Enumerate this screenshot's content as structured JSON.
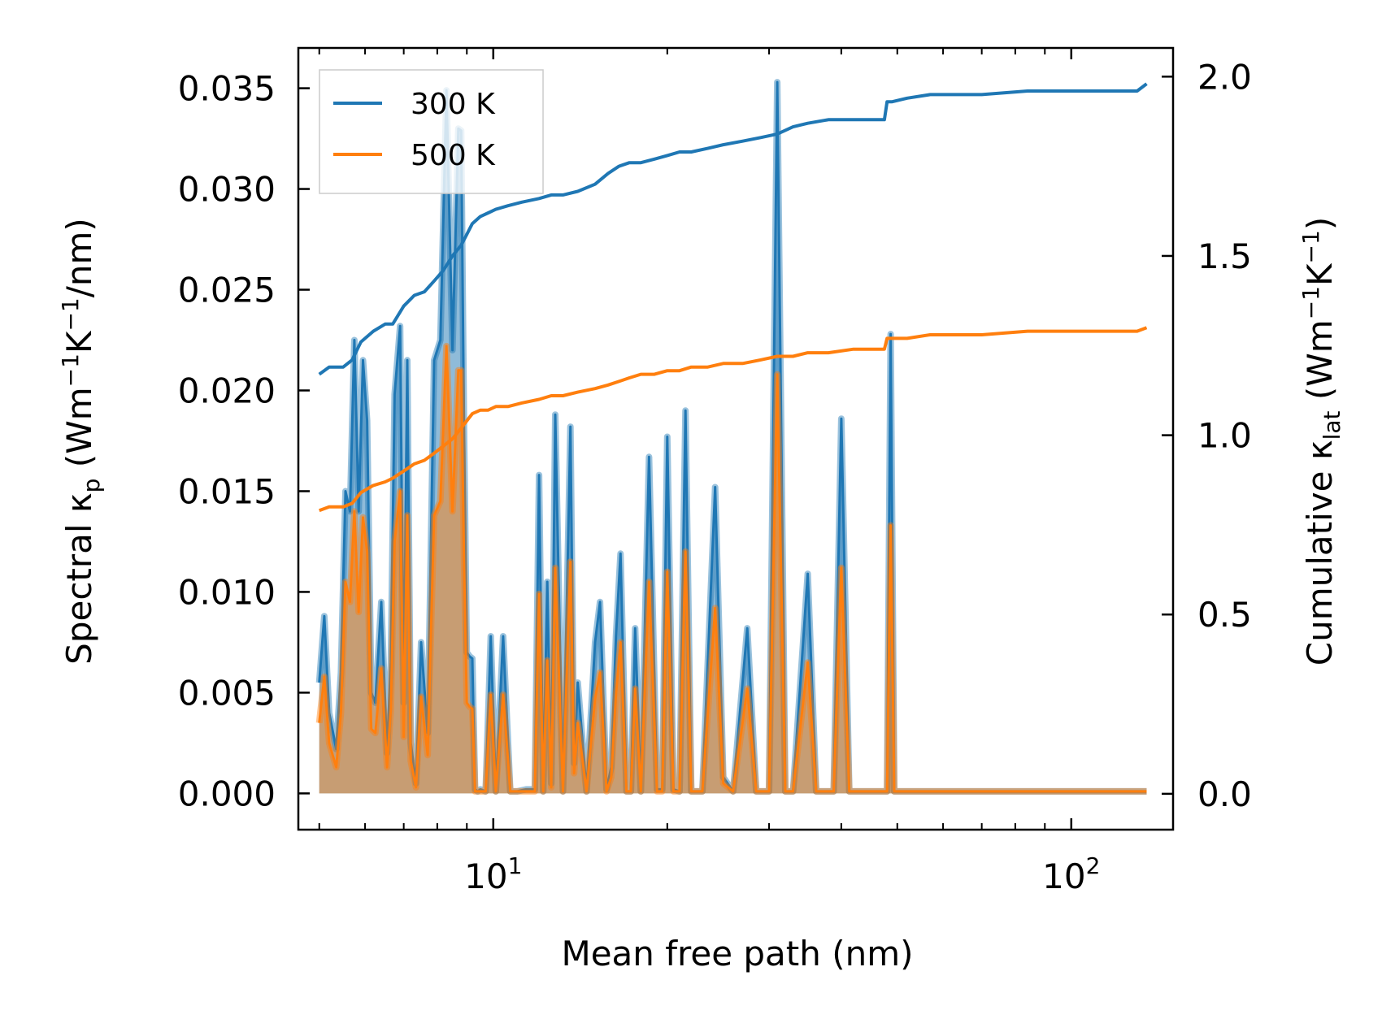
{
  "chart_data": {
    "type": "line",
    "x_scale": "log",
    "xlabel": "Mean free path (nm)",
    "ylabel_left": "Spectral κ_p (Wm⁻¹K⁻¹/nm)",
    "ylabel_right": "Cumulative κ_lat (Wm⁻¹K⁻¹)",
    "xlim": [
      4.6,
      150
    ],
    "ylim_left": [
      -0.0018,
      0.037
    ],
    "ylim_right": [
      -0.1,
      2.08
    ],
    "x_ticks": [
      {
        "value": 10,
        "base": "10",
        "exp": "1"
      },
      {
        "value": 100,
        "base": "10",
        "exp": "2"
      }
    ],
    "y_ticks_left": [
      {
        "value": 0.0,
        "label": "0.000"
      },
      {
        "value": 0.005,
        "label": "0.005"
      },
      {
        "value": 0.01,
        "label": "0.010"
      },
      {
        "value": 0.015,
        "label": "0.015"
      },
      {
        "value": 0.02,
        "label": "0.020"
      },
      {
        "value": 0.025,
        "label": "0.025"
      },
      {
        "value": 0.03,
        "label": "0.030"
      },
      {
        "value": 0.035,
        "label": "0.035"
      }
    ],
    "y_ticks_right": [
      {
        "value": 0.0,
        "label": "0.0"
      },
      {
        "value": 0.5,
        "label": "0.5"
      },
      {
        "value": 1.0,
        "label": "1.0"
      },
      {
        "value": 1.5,
        "label": "1.5"
      },
      {
        "value": 2.0,
        "label": "2.0"
      }
    ],
    "legend": {
      "placement": "top-left",
      "entries": [
        "300 K",
        "500 K"
      ]
    },
    "colors": {
      "300 K": "#1f77b4",
      "500 K": "#ff7f0e"
    },
    "series": [
      {
        "name": "300 K",
        "kind": "spectral",
        "axis": "left",
        "x": [
          5.0,
          5.1,
          5.2,
          5.35,
          5.45,
          5.55,
          5.65,
          5.75,
          5.85,
          5.95,
          6.05,
          6.15,
          6.25,
          6.4,
          6.55,
          6.65,
          6.75,
          6.9,
          7.0,
          7.1,
          7.2,
          7.35,
          7.5,
          7.7,
          7.9,
          8.1,
          8.3,
          8.5,
          8.7,
          8.8,
          8.9,
          9.0,
          9.1,
          9.2,
          9.3,
          9.4,
          9.5,
          9.7,
          9.9,
          10.1,
          10.4,
          10.7,
          11.0,
          11.4,
          11.8,
          12.0,
          12.2,
          12.4,
          12.6,
          12.8,
          13.2,
          13.6,
          13.8,
          14.0,
          14.5,
          15.0,
          15.3,
          15.7,
          16.0,
          16.3,
          16.6,
          17.0,
          17.3,
          17.6,
          18.0,
          18.6,
          19.2,
          19.6,
          20.0,
          20.5,
          21.0,
          21.5,
          22.0,
          23.0,
          24.2,
          25.0,
          26.0,
          27.5,
          28.5,
          29.2,
          30.0,
          31.0,
          32.0,
          33.0,
          35.0,
          36.2,
          37.5,
          38.8,
          40.0,
          41.3,
          45.0,
          48.0,
          48.7,
          49.4,
          50.0,
          52.5,
          55.0,
          57.0,
          59.0,
          80.0,
          82.3,
          84.5,
          127.0,
          131.0,
          135.0
        ],
        "values": [
          0.0055,
          0.0088,
          0.004,
          0.0022,
          0.006,
          0.015,
          0.014,
          0.0225,
          0.014,
          0.0215,
          0.0185,
          0.005,
          0.0045,
          0.0095,
          0.002,
          0.0065,
          0.0198,
          0.0232,
          0.0045,
          0.0215,
          0.0025,
          0.0005,
          0.0075,
          0.003,
          0.0215,
          0.0225,
          0.0349,
          0.022,
          0.033,
          0.0329,
          0.018,
          0.007,
          0.0068,
          0.0067,
          0.0002,
          0.0001,
          0.0002,
          0.0001,
          0.0078,
          0.0001,
          0.0078,
          0.0001,
          0.0001,
          0.0002,
          0.0002,
          0.0158,
          0.0001,
          0.0105,
          0.0005,
          0.0188,
          0.0001,
          0.0182,
          0.0015,
          0.0055,
          0.0001,
          0.0075,
          0.0095,
          0.0002,
          0.0013,
          0.0078,
          0.0119,
          0.0001,
          0.0001,
          0.0082,
          0.0001,
          0.0167,
          0.0002,
          0.0002,
          0.0177,
          0.0002,
          0.0001,
          0.019,
          0.0001,
          0.0001,
          0.0152,
          0.0008,
          0.0001,
          0.0082,
          0.0001,
          0.0001,
          0.0001,
          0.0353,
          0.0001,
          0.0001,
          0.0109,
          0.0001,
          0.0001,
          0.0001,
          0.0186,
          0.0001,
          0.0001,
          0.0001,
          0.0228,
          0.0001,
          0.0001,
          0.0001,
          0.0001,
          0.0001,
          0.0001,
          0.0001,
          0.0001,
          0.0001,
          0.0001,
          0.0001,
          0.0001
        ]
      },
      {
        "name": "500 K",
        "kind": "spectral",
        "axis": "left",
        "x": [
          5.0,
          5.1,
          5.2,
          5.35,
          5.45,
          5.55,
          5.65,
          5.75,
          5.85,
          5.95,
          6.05,
          6.15,
          6.25,
          6.4,
          6.55,
          6.65,
          6.75,
          6.9,
          7.0,
          7.1,
          7.2,
          7.35,
          7.5,
          7.7,
          7.9,
          8.1,
          8.3,
          8.5,
          8.7,
          8.8,
          8.9,
          9.0,
          9.1,
          9.2,
          9.3,
          9.4,
          9.5,
          9.7,
          9.9,
          10.1,
          10.4,
          10.7,
          11.0,
          11.4,
          11.8,
          12.0,
          12.2,
          12.4,
          12.6,
          12.8,
          13.2,
          13.6,
          13.8,
          14.0,
          14.5,
          15.0,
          15.3,
          15.7,
          16.0,
          16.3,
          16.6,
          17.0,
          17.3,
          17.6,
          18.0,
          18.6,
          19.2,
          19.6,
          20.0,
          20.5,
          21.0,
          21.5,
          22.0,
          23.0,
          24.2,
          25.0,
          26.0,
          27.5,
          28.5,
          29.2,
          30.0,
          31.0,
          32.0,
          33.0,
          35.0,
          36.2,
          37.5,
          38.8,
          40.0,
          41.3,
          45.0,
          48.0,
          48.7,
          49.4,
          50.0,
          52.5,
          55.0,
          57.0,
          59.0,
          80.0,
          82.3,
          84.5,
          127.0,
          131.0,
          135.0
        ],
        "values": [
          0.0035,
          0.0058,
          0.0025,
          0.0013,
          0.004,
          0.0105,
          0.0095,
          0.014,
          0.009,
          0.0137,
          0.012,
          0.0032,
          0.003,
          0.0062,
          0.0013,
          0.0042,
          0.0125,
          0.015,
          0.0028,
          0.0138,
          0.0016,
          0.0003,
          0.0048,
          0.0019,
          0.0138,
          0.0145,
          0.0222,
          0.014,
          0.021,
          0.021,
          0.0115,
          0.0045,
          0.0043,
          0.0042,
          0.0001,
          0.0001,
          0.0001,
          0.0001,
          0.0049,
          0.0001,
          0.0049,
          0.0001,
          0.0001,
          0.0001,
          0.0001,
          0.0099,
          0.0001,
          0.0066,
          0.0003,
          0.0112,
          0.0001,
          0.0115,
          0.001,
          0.0035,
          0.0001,
          0.0047,
          0.006,
          0.0001,
          0.0008,
          0.0049,
          0.0075,
          0.0001,
          0.0001,
          0.0052,
          0.0001,
          0.0105,
          0.0001,
          0.0001,
          0.011,
          0.0001,
          0.0001,
          0.012,
          0.0001,
          0.0001,
          0.0092,
          0.0005,
          0.0001,
          0.0052,
          0.0001,
          0.0001,
          0.0001,
          0.0208,
          0.0001,
          0.0001,
          0.0065,
          0.0001,
          0.0001,
          0.0001,
          0.0112,
          0.0001,
          0.0001,
          0.0001,
          0.0133,
          0.0001,
          0.0001,
          0.0001,
          0.0001,
          0.0001,
          0.0001,
          0.0001,
          0.0001,
          0.0001,
          0.0001,
          0.0001,
          0.0001
        ]
      },
      {
        "name": "300 K",
        "kind": "cumulative",
        "axis": "right",
        "x": [
          5.0,
          5.2,
          5.5,
          5.7,
          5.9,
          6.2,
          6.5,
          6.7,
          7.0,
          7.3,
          7.6,
          7.9,
          8.2,
          8.5,
          8.8,
          9.0,
          9.2,
          9.5,
          9.8,
          10.1,
          10.6,
          11.2,
          12.0,
          12.6,
          13.2,
          14.0,
          15.0,
          15.8,
          16.5,
          17.2,
          18.0,
          19.0,
          20.0,
          21.0,
          22.0,
          23.5,
          25.0,
          27.0,
          29.0,
          31.0,
          33.0,
          35.0,
          38.0,
          42.0,
          47.5,
          48.0,
          49.0,
          52.0,
          57.0,
          70.0,
          84.0,
          100.0,
          120.0,
          130.0,
          135.0
        ],
        "values": [
          1.17,
          1.19,
          1.19,
          1.21,
          1.26,
          1.29,
          1.31,
          1.31,
          1.36,
          1.39,
          1.4,
          1.43,
          1.46,
          1.5,
          1.53,
          1.56,
          1.59,
          1.61,
          1.62,
          1.63,
          1.64,
          1.65,
          1.66,
          1.67,
          1.67,
          1.68,
          1.7,
          1.73,
          1.75,
          1.76,
          1.76,
          1.77,
          1.78,
          1.79,
          1.79,
          1.8,
          1.81,
          1.82,
          1.83,
          1.84,
          1.86,
          1.87,
          1.88,
          1.88,
          1.88,
          1.93,
          1.93,
          1.94,
          1.95,
          1.95,
          1.96,
          1.96,
          1.96,
          1.96,
          1.98
        ]
      },
      {
        "name": "500 K",
        "kind": "cumulative",
        "axis": "right",
        "x": [
          5.0,
          5.2,
          5.5,
          5.7,
          5.9,
          6.2,
          6.5,
          6.7,
          7.0,
          7.3,
          7.6,
          7.9,
          8.2,
          8.5,
          8.8,
          9.0,
          9.2,
          9.5,
          9.8,
          10.1,
          10.6,
          11.2,
          12.0,
          12.6,
          13.2,
          14.0,
          15.0,
          15.8,
          16.5,
          17.2,
          18.0,
          19.0,
          20.0,
          21.0,
          22.0,
          23.5,
          25.0,
          27.0,
          29.0,
          31.0,
          33.0,
          35.0,
          38.0,
          42.0,
          47.5,
          48.0,
          49.0,
          52.0,
          57.0,
          70.0,
          84.0,
          100.0,
          120.0,
          130.0,
          135.0
        ],
        "values": [
          0.79,
          0.8,
          0.8,
          0.81,
          0.84,
          0.86,
          0.87,
          0.88,
          0.9,
          0.92,
          0.93,
          0.95,
          0.97,
          0.99,
          1.02,
          1.04,
          1.06,
          1.07,
          1.07,
          1.08,
          1.08,
          1.09,
          1.1,
          1.11,
          1.11,
          1.12,
          1.13,
          1.14,
          1.15,
          1.16,
          1.17,
          1.17,
          1.18,
          1.18,
          1.19,
          1.19,
          1.2,
          1.2,
          1.21,
          1.22,
          1.22,
          1.23,
          1.23,
          1.24,
          1.24,
          1.27,
          1.27,
          1.27,
          1.28,
          1.28,
          1.29,
          1.29,
          1.29,
          1.29,
          1.3
        ]
      }
    ]
  }
}
